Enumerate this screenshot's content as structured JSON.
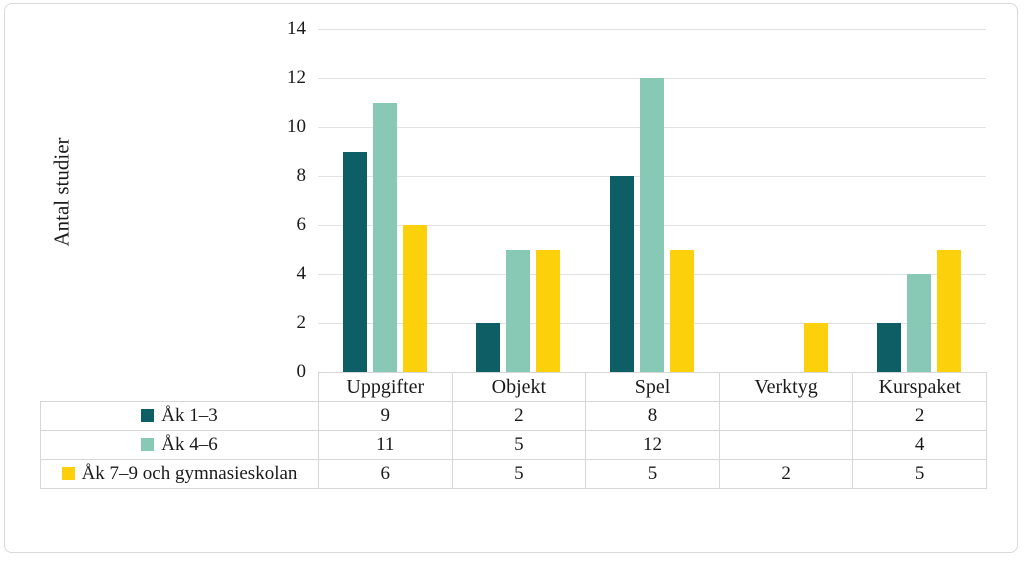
{
  "figure": {
    "background": "#ffffff",
    "frame_border_color": "#d9d9d9"
  },
  "chart_data": {
    "type": "bar",
    "title": "",
    "xlabel": "",
    "ylabel": "Antal studier",
    "ylim": [
      0,
      14
    ],
    "yticks": [
      0,
      2,
      4,
      6,
      8,
      10,
      12,
      14
    ],
    "grid": true,
    "gridline_color": "#e2e2e2",
    "categories": [
      "Uppgifter",
      "Objekt",
      "Spel",
      "Verktyg",
      "Kurspaket"
    ],
    "series": [
      {
        "name": "Åk 1–3",
        "color": "#0e5e66",
        "values": [
          9,
          2,
          8,
          null,
          2
        ]
      },
      {
        "name": "Åk 4–6",
        "color": "#87c9b4",
        "values": [
          11,
          5,
          12,
          null,
          4
        ]
      },
      {
        "name": "Åk 7–9 och gymnasieskolan",
        "color": "#fcd10c",
        "values": [
          6,
          5,
          5,
          2,
          5
        ]
      }
    ],
    "legend_position": "table-left",
    "table_border_color": "#d6d6d6"
  }
}
